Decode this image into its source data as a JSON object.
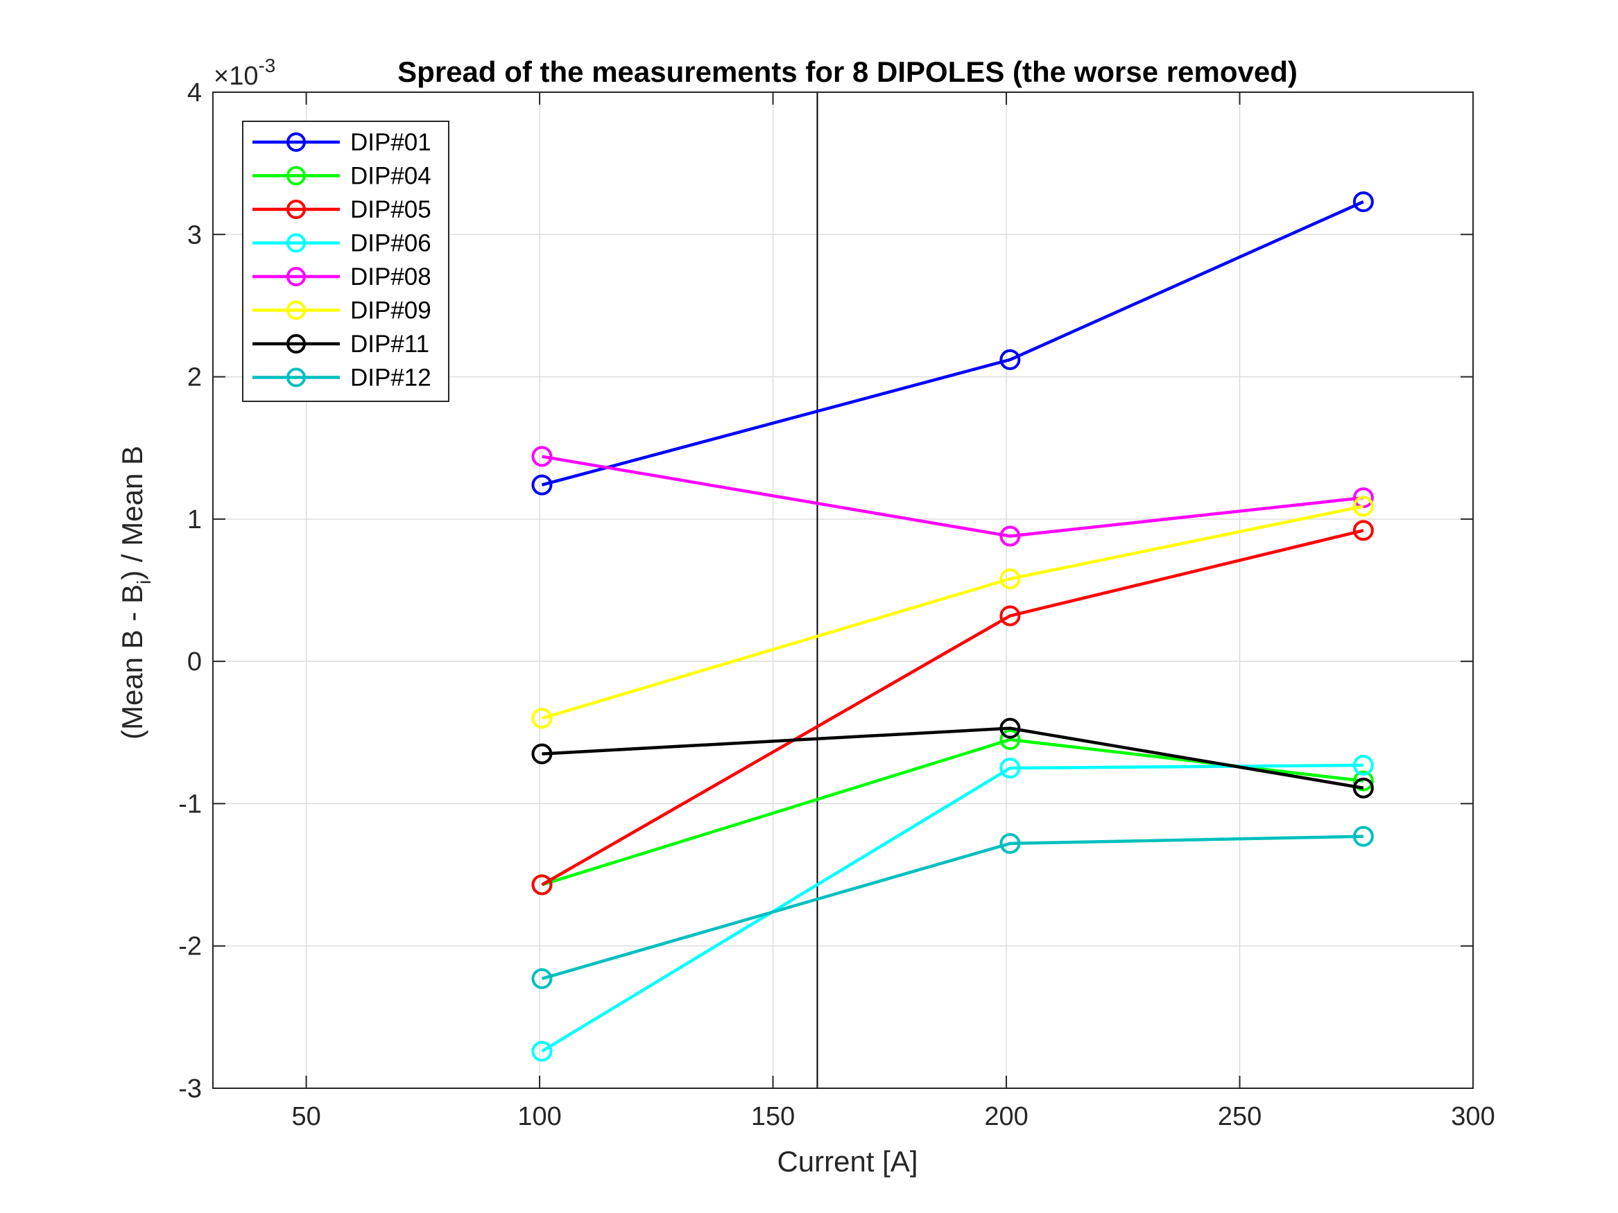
{
  "chart_data": {
    "type": "line",
    "title": "Spread of the measurements for 8 DIPOLES (the worse removed)",
    "xlabel": "Current [A]",
    "ylabel": "(Mean B - Bi) / Mean B",
    "ylabel_parts": {
      "before": "(Mean B - B",
      "sub": "i",
      "after": ") / Mean B"
    },
    "exponent_label": {
      "base": "×10",
      "exp": "-3"
    },
    "xlim": [
      30,
      300
    ],
    "ylim": [
      -3,
      4
    ],
    "xticks": [
      "50",
      "100",
      "150",
      "200",
      "250",
      "300"
    ],
    "yticks": [
      "-3",
      "-2",
      "-1",
      "0",
      "1",
      "2",
      "3",
      "4"
    ],
    "grid": true,
    "legend_position": "top-left",
    "vertical_marker_x": 159.5,
    "series": [
      {
        "name": "DIP#01",
        "color": "#0000ff",
        "x": [
          100.5,
          200.8,
          276.5
        ],
        "y": [
          1.24,
          2.12,
          3.23
        ]
      },
      {
        "name": "DIP#04",
        "color": "#00ff00",
        "x": [
          100.5,
          200.8,
          276.5
        ],
        "y": [
          -1.57,
          -0.55,
          -0.84
        ]
      },
      {
        "name": "DIP#05",
        "color": "#ff0000",
        "x": [
          100.5,
          200.8,
          276.5
        ],
        "y": [
          -1.57,
          0.32,
          0.92
        ]
      },
      {
        "name": "DIP#06",
        "color": "#00ffff",
        "x": [
          100.5,
          200.8,
          276.5
        ],
        "y": [
          -2.74,
          -0.75,
          -0.73
        ]
      },
      {
        "name": "DIP#08",
        "color": "#ff00ff",
        "x": [
          100.5,
          200.8,
          276.5
        ],
        "y": [
          1.44,
          0.88,
          1.15
        ]
      },
      {
        "name": "DIP#09",
        "color": "#ffff00",
        "x": [
          100.5,
          200.8,
          276.5
        ],
        "y": [
          -0.4,
          0.58,
          1.09
        ]
      },
      {
        "name": "DIP#11",
        "color": "#000000",
        "x": [
          100.5,
          200.8,
          276.5
        ],
        "y": [
          -0.65,
          -0.47,
          -0.89
        ]
      },
      {
        "name": "DIP#12",
        "color": "#00bfbf",
        "x": [
          100.5,
          200.8,
          276.5
        ],
        "y": [
          -2.23,
          -1.28,
          -1.23
        ]
      }
    ]
  }
}
